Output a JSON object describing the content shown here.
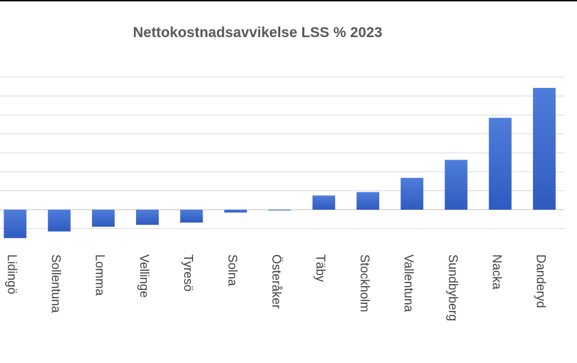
{
  "chart_data": {
    "type": "bar",
    "title": "Nettokostnadsavvikelse LSS % 2023",
    "categories": [
      "Lidingö",
      "Sollentuna",
      "Lomma",
      "Vellinge",
      "Tyresö",
      "Solna",
      "Österåker",
      "Täby",
      "Stockholm",
      "Vallentuna",
      "Sundbyberg",
      "Nacka",
      "Danderyd"
    ],
    "values": [
      -15,
      -11.5,
      -9,
      -8,
      -6.8,
      -1.5,
      -0.4,
      7.5,
      9.3,
      16.8,
      26.3,
      48.5,
      64.3
    ],
    "ylim": [
      -18,
      72
    ],
    "grid": true,
    "colors": {
      "bar_light": "#4f7ddb",
      "bar_dark": "#2f5bc0",
      "grid": "#d9d9d9",
      "axis": "#bfbfbf"
    }
  }
}
